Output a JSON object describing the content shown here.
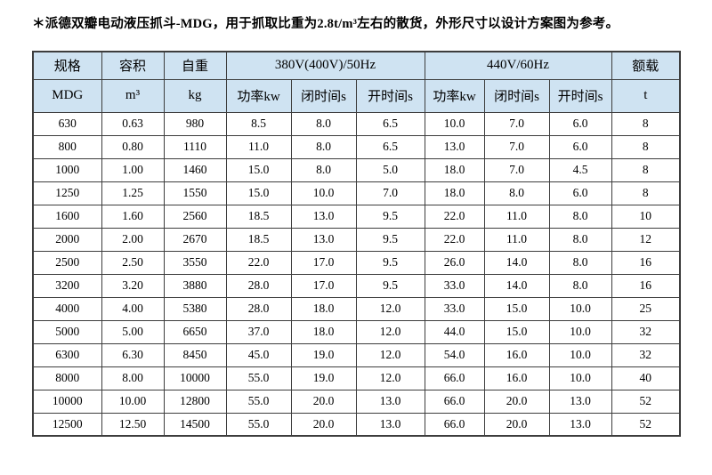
{
  "title": "＊派德双瓣电动液压抓斗-MDG，用于抓取比重为2.8t/m³左右的散货，外形尺寸以设计方案图为参考。",
  "colors": {
    "header_bg": "#cfe3f2",
    "border": "#3d3d3d",
    "text": "#000000",
    "page_bg": "#ffffff"
  },
  "table": {
    "header_row1": [
      {
        "label": "规格",
        "colspan": 1
      },
      {
        "label": "容积",
        "colspan": 1
      },
      {
        "label": "自重",
        "colspan": 1
      },
      {
        "label": "380V(400V)/50Hz",
        "colspan": 3
      },
      {
        "label": "440V/60Hz",
        "colspan": 3
      },
      {
        "label": "额载",
        "colspan": 1
      }
    ],
    "header_row2": [
      "MDG",
      "m³",
      "kg",
      "功率kw",
      "闭时间s",
      "开时间s",
      "功率kw",
      "闭时间s",
      "开时间s",
      "t"
    ],
    "rows": [
      [
        "630",
        "0.63",
        "980",
        "8.5",
        "8.0",
        "6.5",
        "10.0",
        "7.0",
        "6.0",
        "8"
      ],
      [
        "800",
        "0.80",
        "1110",
        "11.0",
        "8.0",
        "6.5",
        "13.0",
        "7.0",
        "6.0",
        "8"
      ],
      [
        "1000",
        "1.00",
        "1460",
        "15.0",
        "8.0",
        "5.0",
        "18.0",
        "7.0",
        "4.5",
        "8"
      ],
      [
        "1250",
        "1.25",
        "1550",
        "15.0",
        "10.0",
        "7.0",
        "18.0",
        "8.0",
        "6.0",
        "8"
      ],
      [
        "1600",
        "1.60",
        "2560",
        "18.5",
        "13.0",
        "9.5",
        "22.0",
        "11.0",
        "8.0",
        "10"
      ],
      [
        "2000",
        "2.00",
        "2670",
        "18.5",
        "13.0",
        "9.5",
        "22.0",
        "11.0",
        "8.0",
        "12"
      ],
      [
        "2500",
        "2.50",
        "3550",
        "22.0",
        "17.0",
        "9.5",
        "26.0",
        "14.0",
        "8.0",
        "16"
      ],
      [
        "3200",
        "3.20",
        "3880",
        "28.0",
        "17.0",
        "9.5",
        "33.0",
        "14.0",
        "8.0",
        "16"
      ],
      [
        "4000",
        "4.00",
        "5380",
        "28.0",
        "18.0",
        "12.0",
        "33.0",
        "15.0",
        "10.0",
        "25"
      ],
      [
        "5000",
        "5.00",
        "6650",
        "37.0",
        "18.0",
        "12.0",
        "44.0",
        "15.0",
        "10.0",
        "32"
      ],
      [
        "6300",
        "6.30",
        "8450",
        "45.0",
        "19.0",
        "12.0",
        "54.0",
        "16.0",
        "10.0",
        "32"
      ],
      [
        "8000",
        "8.00",
        "10000",
        "55.0",
        "19.0",
        "12.0",
        "66.0",
        "16.0",
        "10.0",
        "40"
      ],
      [
        "10000",
        "10.00",
        "12800",
        "55.0",
        "20.0",
        "13.0",
        "66.0",
        "20.0",
        "13.0",
        "52"
      ],
      [
        "12500",
        "12.50",
        "14500",
        "55.0",
        "20.0",
        "13.0",
        "66.0",
        "20.0",
        "13.0",
        "52"
      ]
    ]
  }
}
